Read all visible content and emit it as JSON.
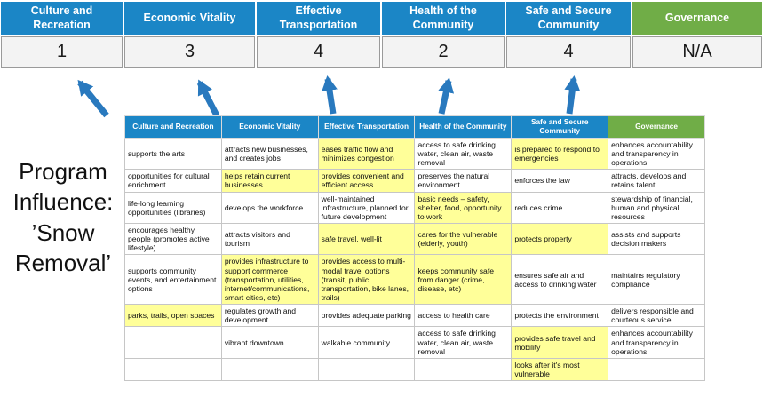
{
  "title": {
    "text": "Program Influence: ’Snow Removal’"
  },
  "colors": {
    "blue": "#1b86c6",
    "green": "#70ad47",
    "yellow": "#ffff99",
    "arrow": "#2979be"
  },
  "scoreboard": [
    {
      "label": "Culture and Recreation",
      "score": "1",
      "theme": "blue"
    },
    {
      "label": "Economic Vitality",
      "score": "3",
      "theme": "blue"
    },
    {
      "label": "Effective Transportation",
      "score": "4",
      "theme": "blue"
    },
    {
      "label": "Health of the Community",
      "score": "2",
      "theme": "blue"
    },
    {
      "label": "Safe and Secure Community",
      "score": "4",
      "theme": "blue"
    },
    {
      "label": "Governance",
      "score": "N/A",
      "theme": "green"
    }
  ],
  "matrix": {
    "headers": [
      {
        "label": "Culture and Recreation",
        "theme": "blue"
      },
      {
        "label": "Economic Vitality",
        "theme": "blue"
      },
      {
        "label": "Effective Transportation",
        "theme": "blue"
      },
      {
        "label": "Health of the Community",
        "theme": "blue"
      },
      {
        "label": "Safe and Secure Community",
        "theme": "blue"
      },
      {
        "label": "Governance",
        "theme": "green"
      }
    ],
    "rows": [
      [
        {
          "text": "supports the arts",
          "highlight": false
        },
        {
          "text": "attracts new businesses, and creates jobs",
          "highlight": false
        },
        {
          "text": "eases traffic flow and minimizes congestion",
          "highlight": true
        },
        {
          "text": "access to safe drinking water, clean air, waste removal",
          "highlight": false
        },
        {
          "text": "is prepared to respond to emergencies",
          "highlight": true
        },
        {
          "text": "enhances accountability and transparency in operations",
          "highlight": false
        }
      ],
      [
        {
          "text": "opportunities for cultural enrichment",
          "highlight": false
        },
        {
          "text": "helps retain current businesses",
          "highlight": true
        },
        {
          "text": "provides convenient and efficient access",
          "highlight": true
        },
        {
          "text": "preserves the natural environment",
          "highlight": false
        },
        {
          "text": "enforces the law",
          "highlight": false
        },
        {
          "text": "attracts, develops and retains talent",
          "highlight": false
        }
      ],
      [
        {
          "text": "life-long learning opportunities (libraries)",
          "highlight": false
        },
        {
          "text": "develops the workforce",
          "highlight": false
        },
        {
          "text": "well-maintained infrastructure, planned for future development",
          "highlight": false
        },
        {
          "text": "basic needs – safety, shelter, food, opportunity to work",
          "highlight": true
        },
        {
          "text": "reduces crime",
          "highlight": false
        },
        {
          "text": "stewardship of financial, human and physical resources",
          "highlight": false
        }
      ],
      [
        {
          "text": "encourages healthy people (promotes active lifestyle)",
          "highlight": false
        },
        {
          "text": "attracts visitors and tourism",
          "highlight": false
        },
        {
          "text": "safe travel, well-lit",
          "highlight": true
        },
        {
          "text": "cares for the vulnerable (elderly, youth)",
          "highlight": true
        },
        {
          "text": "protects property",
          "highlight": true
        },
        {
          "text": "assists and supports decision makers",
          "highlight": false
        }
      ],
      [
        {
          "text": "supports community events, and entertainment options",
          "highlight": false
        },
        {
          "text": "provides infrastructure to support commerce (transportation, utilities, internet/communications, smart cities, etc)",
          "highlight": true
        },
        {
          "text": "provides access to multi-modal travel options (transit, public transportation, bike lanes, trails)",
          "highlight": true
        },
        {
          "text": "keeps community safe from danger (crime, disease, etc)",
          "highlight": true
        },
        {
          "text": "ensures safe air and access to drinking water",
          "highlight": false
        },
        {
          "text": "maintains regulatory compliance",
          "highlight": false
        }
      ],
      [
        {
          "text": "parks, trails, open spaces",
          "highlight": true
        },
        {
          "text": "regulates growth and development",
          "highlight": false
        },
        {
          "text": "provides adequate parking",
          "highlight": false
        },
        {
          "text": "access to health care",
          "highlight": false
        },
        {
          "text": "protects the environment",
          "highlight": false
        },
        {
          "text": "delivers responsible and courteous service",
          "highlight": false
        }
      ],
      [
        {
          "text": "",
          "highlight": false
        },
        {
          "text": "vibrant downtown",
          "highlight": false
        },
        {
          "text": "walkable community",
          "highlight": false
        },
        {
          "text": "access to safe drinking water, clean air, waste removal",
          "highlight": false
        },
        {
          "text": "provides safe travel and mobility",
          "highlight": true
        },
        {
          "text": "enhances accountability and transparency in operations",
          "highlight": false
        }
      ],
      [
        {
          "text": "",
          "highlight": false
        },
        {
          "text": "",
          "highlight": false
        },
        {
          "text": "",
          "highlight": false
        },
        {
          "text": "",
          "highlight": false
        },
        {
          "text": "looks after it's most vulnerable",
          "highlight": true
        },
        {
          "text": "",
          "highlight": false
        }
      ]
    ]
  }
}
